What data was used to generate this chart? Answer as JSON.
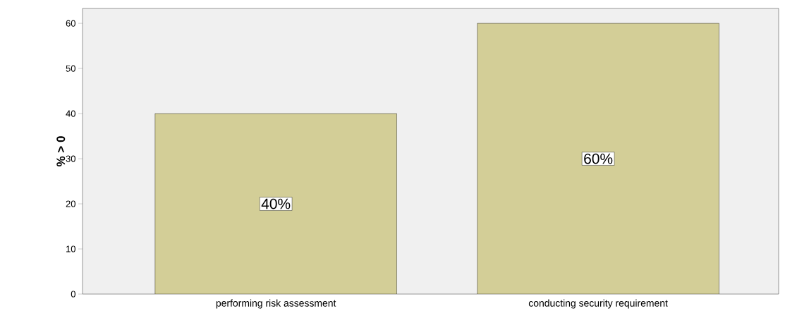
{
  "chart_data": {
    "type": "bar",
    "ylabel": "% > 0",
    "categories": [
      "performing risk assessment",
      "conducting security requirement"
    ],
    "values": [
      40,
      60
    ],
    "color": "#d3ce97",
    "value_labels": [
      "40%",
      "60%"
    ],
    "ylim": [
      0,
      63.3
    ],
    "yticks": [
      0,
      10,
      20,
      30,
      40,
      50,
      60
    ],
    "grid": false
  }
}
